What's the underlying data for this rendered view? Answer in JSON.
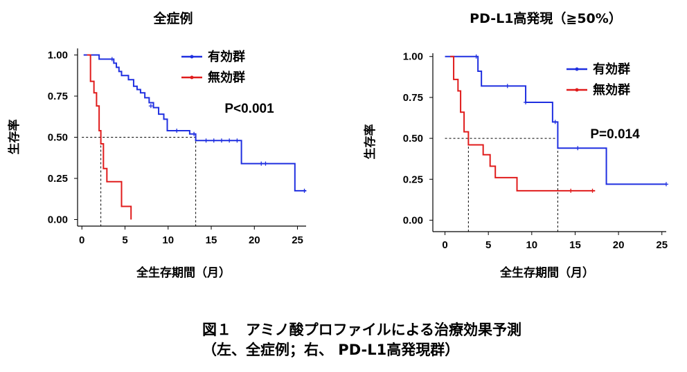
{
  "caption": {
    "line1": "図１　アミノ酸プロファイルによる治療効果予測",
    "line2": "（左、全症例；右、 PD-L1高発現群）"
  },
  "colors": {
    "effective": "#1f2fe0",
    "ineffective": "#e01b1b",
    "axis": "#000000"
  },
  "chart_data": [
    {
      "type": "line",
      "subtype": "kaplan-meier",
      "title": "全症例",
      "xlabel": "全生存期間（月）",
      "ylabel": "生存率",
      "xlim": [
        -0.5,
        26
      ],
      "ylim": [
        -0.04,
        1.04
      ],
      "xticks": [
        "0",
        "5",
        "10",
        "15",
        "20",
        "25"
      ],
      "yticks": [
        "0.00",
        "0.25",
        "0.50",
        "0.75",
        "1.00"
      ],
      "pvalue": "P<0.001",
      "legend_position": "top-right",
      "median_lines": [
        2.2,
        13.2
      ],
      "series": [
        {
          "name": "有効群",
          "x": [
            0.2,
            2.0,
            3.4,
            3.7,
            4.0,
            4.3,
            4.6,
            5.0,
            5.4,
            6.0,
            6.4,
            6.8,
            7.3,
            7.8,
            8.3,
            8.9,
            9.5,
            9.9,
            12.5,
            13.2,
            18.5,
            24.7,
            26.0
          ],
          "y": [
            1.0,
            0.975,
            0.975,
            0.95,
            0.925,
            0.9,
            0.875,
            0.875,
            0.85,
            0.81,
            0.79,
            0.77,
            0.74,
            0.71,
            0.68,
            0.64,
            0.61,
            0.54,
            0.52,
            0.48,
            0.34,
            0.175,
            0.175
          ],
          "censored": [
            [
              3.5,
              0.975
            ],
            [
              8.0,
              0.69
            ],
            [
              11.0,
              0.54
            ],
            [
              13.0,
              0.52
            ],
            [
              14.4,
              0.48
            ],
            [
              15.3,
              0.48
            ],
            [
              16.2,
              0.48
            ],
            [
              17.1,
              0.48
            ],
            [
              18.0,
              0.48
            ],
            [
              20.8,
              0.34
            ],
            [
              21.3,
              0.34
            ],
            [
              25.8,
              0.175
            ]
          ]
        },
        {
          "name": "無効群",
          "x": [
            0.6,
            1.0,
            1.4,
            1.7,
            2.0,
            2.2,
            2.5,
            2.9,
            4.6,
            5.7
          ],
          "y": [
            1.0,
            0.84,
            0.77,
            0.69,
            0.54,
            0.46,
            0.31,
            0.23,
            0.08,
            0.0
          ],
          "censored": []
        }
      ]
    },
    {
      "type": "line",
      "subtype": "kaplan-meier",
      "title": "PD-L1高発現（≧50%）",
      "xlabel": "全生存期間（月）",
      "ylabel": "生存率",
      "xlim": [
        -1.4,
        25.5
      ],
      "ylim": [
        -0.07,
        1.02
      ],
      "xticks": [
        "0",
        "5",
        "10",
        "15",
        "20",
        "25"
      ],
      "yticks": [
        "0.00",
        "0.25",
        "0.50",
        "0.75",
        "1.00"
      ],
      "pvalue": "P=0.014",
      "legend_position": "top-right",
      "median_lines": [
        2.7,
        13.0
      ],
      "series": [
        {
          "name": "有効群",
          "x": [
            0.0,
            3.8,
            4.2,
            9.3,
            12.4,
            13.0,
            18.6,
            25.5
          ],
          "y": [
            1.0,
            0.91,
            0.82,
            0.72,
            0.6,
            0.44,
            0.22,
            0.22
          ],
          "censored": [
            [
              3.6,
              1.0
            ],
            [
              7.2,
              0.82
            ],
            [
              9.3,
              0.72
            ],
            [
              12.7,
              0.6
            ],
            [
              15.3,
              0.44
            ],
            [
              25.5,
              0.22
            ]
          ]
        },
        {
          "name": "無効群",
          "x": [
            0.6,
            1.0,
            1.5,
            1.8,
            2.2,
            2.7,
            4.4,
            5.2,
            5.8,
            8.3,
            17.3
          ],
          "y": [
            1.0,
            0.86,
            0.79,
            0.66,
            0.54,
            0.46,
            0.4,
            0.33,
            0.26,
            0.18,
            0.18
          ],
          "censored": [
            [
              14.5,
              0.18
            ],
            [
              17.0,
              0.18
            ]
          ]
        }
      ]
    }
  ]
}
